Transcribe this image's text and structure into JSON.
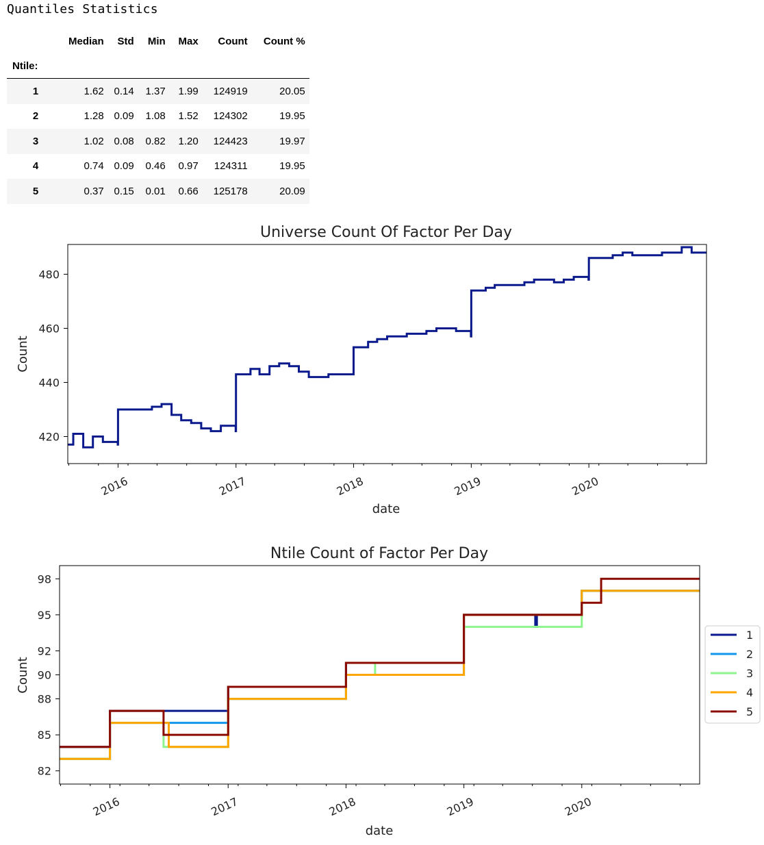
{
  "heading": "Quantiles Statistics",
  "table": {
    "columns": [
      "Median",
      "Std",
      "Min",
      "Max",
      "Count",
      "Count %"
    ],
    "index_name": "Ntile:",
    "rows": [
      {
        "ntile": "1",
        "median": "1.62",
        "std": "0.14",
        "min": "1.37",
        "max": "1.99",
        "count": "124919",
        "count_pct": "20.05"
      },
      {
        "ntile": "2",
        "median": "1.28",
        "std": "0.09",
        "min": "1.08",
        "max": "1.52",
        "count": "124302",
        "count_pct": "19.95"
      },
      {
        "ntile": "3",
        "median": "1.02",
        "std": "0.08",
        "min": "0.82",
        "max": "1.20",
        "count": "124423",
        "count_pct": "19.97"
      },
      {
        "ntile": "4",
        "median": "0.74",
        "std": "0.09",
        "min": "0.46",
        "max": "0.97",
        "count": "124311",
        "count_pct": "19.95"
      },
      {
        "ntile": "5",
        "median": "0.37",
        "std": "0.15",
        "min": "0.01",
        "max": "0.66",
        "count": "125178",
        "count_pct": "20.09"
      }
    ]
  },
  "chart_data": [
    {
      "type": "line",
      "title": "Universe Count Of Factor Per Day",
      "xlabel": "date",
      "ylabel": "Count",
      "xlim": [
        "2015-07-29",
        "2020-12-31"
      ],
      "ylim": [
        410,
        491
      ],
      "x_ticks": [
        "2016",
        "2017",
        "2018",
        "2019",
        "2020"
      ],
      "y_ticks": [
        420,
        440,
        460,
        480
      ],
      "grid": false,
      "color": "#0a1a8c",
      "series": [
        {
          "x": [
            "2015-07-29",
            "2015-08-15",
            "2015-09-15",
            "2015-10-15",
            "2015-11-15",
            "2015-12-31",
            "2016-01-01",
            "2016-02-15",
            "2016-03-15",
            "2016-04-15",
            "2016-05-15",
            "2016-06-15",
            "2016-07-15",
            "2016-08-15",
            "2016-09-15",
            "2016-10-15",
            "2016-11-15",
            "2016-12-31",
            "2017-01-01",
            "2017-02-15",
            "2017-03-15",
            "2017-04-15",
            "2017-05-15",
            "2017-06-15",
            "2017-07-15",
            "2017-08-15",
            "2017-09-15",
            "2017-10-15",
            "2017-11-15",
            "2017-12-31",
            "2018-01-01",
            "2018-02-15",
            "2018-03-15",
            "2018-04-15",
            "2018-05-15",
            "2018-06-15",
            "2018-07-15",
            "2018-08-15",
            "2018-09-15",
            "2018-10-15",
            "2018-11-15",
            "2018-12-31",
            "2019-01-01",
            "2019-02-15",
            "2019-03-15",
            "2019-04-15",
            "2019-05-15",
            "2019-06-15",
            "2019-07-15",
            "2019-08-15",
            "2019-09-15",
            "2019-10-15",
            "2019-11-15",
            "2019-12-31",
            "2020-01-01",
            "2020-02-15",
            "2020-03-15",
            "2020-04-15",
            "2020-05-15",
            "2020-06-15",
            "2020-07-15",
            "2020-08-15",
            "2020-09-15",
            "2020-10-15",
            "2020-11-15",
            "2020-12-31"
          ],
          "values": [
            417,
            421,
            416,
            420,
            418,
            417,
            430,
            430,
            430,
            431,
            432,
            428,
            426,
            425,
            423,
            422,
            424,
            422,
            443,
            445,
            443,
            446,
            447,
            446,
            444,
            442,
            442,
            443,
            443,
            443,
            453,
            455,
            456,
            457,
            457,
            458,
            458,
            459,
            460,
            460,
            459,
            457,
            474,
            475,
            476,
            476,
            476,
            477,
            478,
            478,
            477,
            478,
            479,
            478,
            486,
            486,
            487,
            488,
            487,
            487,
            487,
            488,
            488,
            490,
            488,
            488
          ]
        }
      ]
    },
    {
      "type": "line",
      "title": "Ntile Count of Factor Per Day",
      "xlabel": "date",
      "ylabel": "Count",
      "xlim": [
        "2015-07-29",
        "2020-12-31"
      ],
      "ylim": [
        80.9,
        99.1
      ],
      "x_ticks": [
        "2016",
        "2017",
        "2018",
        "2019",
        "2020"
      ],
      "y_ticks": [
        82,
        85,
        88,
        90,
        92,
        95,
        98
      ],
      "legend_placement": "outside-right",
      "grid": false,
      "series": [
        {
          "name": "1",
          "color": "#0a1a8c",
          "x": [
            "2015-07-29",
            "2016-01-01",
            "2017-01-01",
            "2017-05-10",
            "2017-06-01",
            "2018-01-01",
            "2019-01-01",
            "2019-08-10",
            "2019-08-15",
            "2020-01-01",
            "2020-12-31"
          ],
          "values": [
            84,
            87,
            89,
            89,
            89,
            91,
            95,
            94,
            95,
            97,
            97
          ]
        },
        {
          "name": "2",
          "color": "#1296ec",
          "x": [
            "2015-07-29",
            "2016-01-01",
            "2017-01-01",
            "2017-09-10",
            "2017-09-15",
            "2018-01-01",
            "2019-01-01",
            "2020-01-01",
            "2020-03-20",
            "2020-03-25",
            "2020-12-31"
          ],
          "values": [
            83,
            86,
            88,
            88,
            88,
            90,
            95,
            97,
            97,
            97,
            97
          ]
        },
        {
          "name": "3",
          "color": "#8ef58e",
          "x": [
            "2015-07-29",
            "2016-01-01",
            "2016-06-15",
            "2017-01-01",
            "2018-01-01",
            "2018-04-01",
            "2019-01-01",
            "2020-01-01",
            "2020-12-31"
          ],
          "values": [
            83,
            86,
            84,
            88,
            90,
            91,
            94,
            97,
            97
          ]
        },
        {
          "name": "4",
          "color": "#ffa500",
          "x": [
            "2015-07-29",
            "2016-01-01",
            "2016-07-01",
            "2017-01-01",
            "2017-08-01",
            "2018-01-01",
            "2019-01-01",
            "2019-06-01",
            "2020-01-01",
            "2020-10-01",
            "2020-12-31"
          ],
          "values": [
            83,
            86,
            84,
            88,
            88,
            90,
            95,
            95,
            97,
            97,
            97
          ]
        },
        {
          "name": "5",
          "color": "#8b0a00",
          "x": [
            "2015-07-29",
            "2016-01-01",
            "2016-06-15",
            "2017-01-01",
            "2018-01-01",
            "2018-09-01",
            "2019-01-01",
            "2020-01-01",
            "2020-03-01",
            "2020-12-31"
          ],
          "values": [
            84,
            87,
            85,
            89,
            91,
            91,
            95,
            96,
            98,
            98
          ]
        }
      ]
    }
  ]
}
